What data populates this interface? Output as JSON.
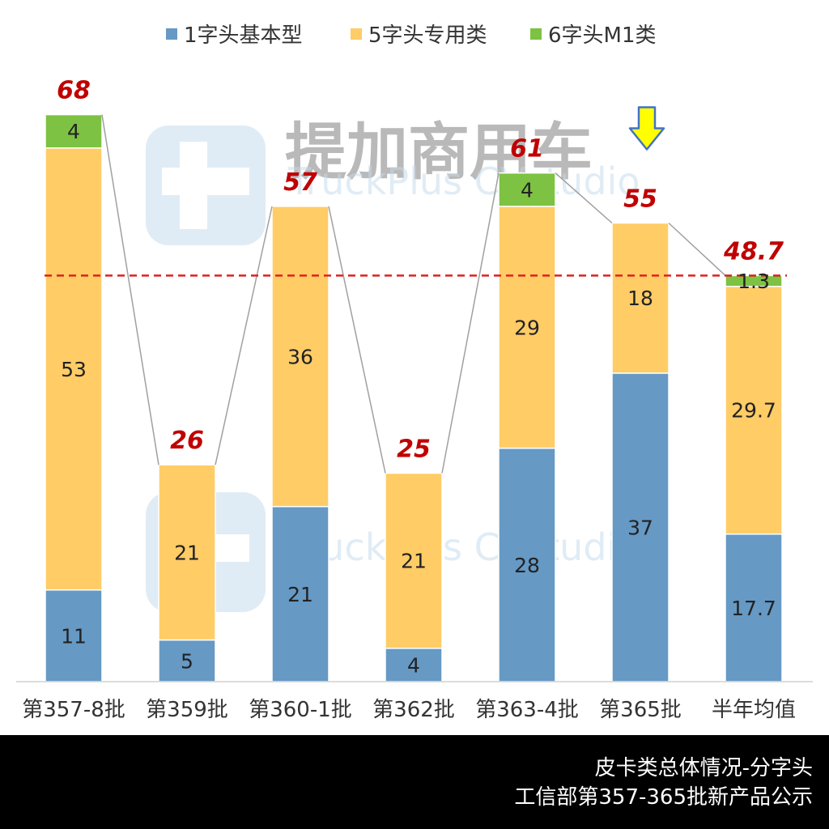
{
  "chart_data": {
    "type": "bar",
    "stacked": true,
    "categories": [
      "第357-8批",
      "第359批",
      "第360-1批",
      "第362批",
      "第363-4批",
      "第365批",
      "半年均值"
    ],
    "series": [
      {
        "name": "1字头基本型",
        "color": "#6699C4",
        "values": [
          11,
          5,
          21,
          4,
          28,
          37,
          17.7
        ],
        "labels": [
          "11",
          "5",
          "21",
          "4",
          "28",
          "37",
          "17.7"
        ]
      },
      {
        "name": "5字头专用类",
        "color": "#FFCC66",
        "values": [
          53,
          21,
          36,
          21,
          29,
          18,
          29.7
        ],
        "labels": [
          "53",
          "21",
          "36",
          "21",
          "29",
          "18",
          "29.7"
        ]
      },
      {
        "name": "6字头M1类",
        "color": "#7DC242",
        "values": [
          4,
          0,
          0,
          0,
          4,
          0,
          1.3
        ],
        "labels": [
          "4",
          "",
          "",
          "",
          "4",
          "",
          "1.3"
        ]
      }
    ],
    "totals": [
      "68",
      "26",
      "57",
      "25",
      "61",
      "55",
      "48.7"
    ],
    "total_values": [
      68,
      26,
      57,
      25,
      61,
      55,
      48.7
    ],
    "average_line": 48.7,
    "highlight_category": "第365批",
    "ylim": [
      0,
      70
    ],
    "xlabel": "",
    "ylabel": "",
    "legend_position": "top-center"
  },
  "watermark": {
    "brand": "提加商用车",
    "sub": "TruckPlus CVstudio"
  },
  "footer": {
    "line1": "皮卡类总体情况-分字头",
    "line2": "工信部第357-365批新产品公示"
  },
  "colors": {
    "total_label": "#C00000",
    "avg_line": "#E02020",
    "connector": "#A0A0A0",
    "arrow": "#FFFF00",
    "arrow_outline": "#4472C4",
    "watermark": "#9CC3E0"
  }
}
